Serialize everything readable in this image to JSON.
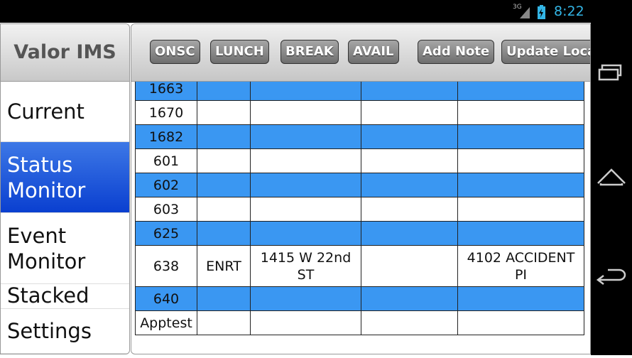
{
  "status_bar": {
    "network": "3G",
    "time": "8:22"
  },
  "sidebar": {
    "title": "Valor IMS",
    "items": [
      "Current",
      "Status Monitor",
      "Event Monitor",
      "Stacked",
      "Settings"
    ],
    "selected": 1
  },
  "toolbar": {
    "buttons": [
      "ONSC",
      "LUNCH",
      "BREAK",
      "AVAIL",
      "Add Note",
      "Update Loca"
    ]
  },
  "table": {
    "rows": [
      [
        "1663",
        null,
        null,
        null,
        null
      ],
      [
        "1670",
        null,
        null,
        null,
        null
      ],
      [
        "1682",
        null,
        null,
        null,
        null
      ],
      [
        "601",
        null,
        null,
        null,
        null
      ],
      [
        "602",
        null,
        null,
        null,
        null
      ],
      [
        "603",
        null,
        null,
        null,
        null
      ],
      [
        "625",
        null,
        null,
        null,
        null
      ],
      [
        "638",
        "ENRT",
        "1415 W 22nd ST",
        null,
        "4102 ACCIDENT PI"
      ],
      [
        "640",
        null,
        null,
        null,
        null
      ],
      [
        "Apptest",
        null,
        null,
        null,
        null
      ]
    ]
  }
}
